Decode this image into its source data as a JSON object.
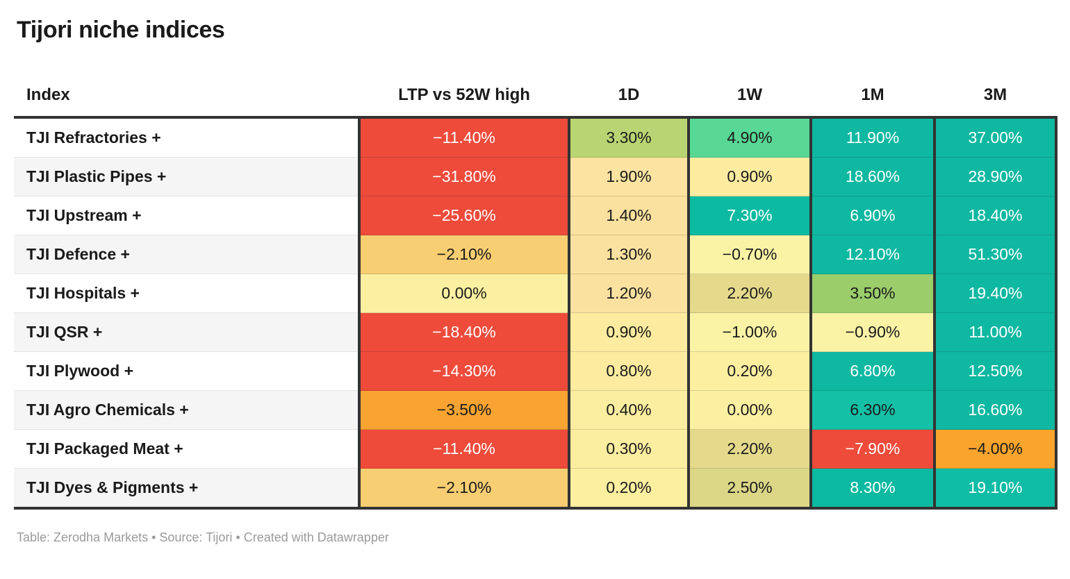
{
  "title": "Tijori niche indices",
  "footer": "Table: Zerodha Markets • Source: Tijori • Created with Datawrapper",
  "colors": {
    "red": "#EE4B3B",
    "orange": "#F9A432",
    "amber": "#F8CE72",
    "teal": "#0FB8A1",
    "border_dark": "#333333",
    "row_alt": "#f5f5f5",
    "footer_text": "#9a9a9a"
  },
  "table": {
    "columns": [
      "Index",
      "LTP vs 52W high",
      "1D",
      "1W",
      "1M",
      "3M"
    ],
    "rows": [
      {
        "index": "TJI Refractories +",
        "cells": [
          {
            "value": "−11.40%",
            "bg": "#EE4B3B",
            "fg": "#ffffff"
          },
          {
            "value": "3.30%",
            "bg": "#B9D573",
            "fg": "#1a1a1a"
          },
          {
            "value": "4.90%",
            "bg": "#58D795",
            "fg": "#1a1a1a"
          },
          {
            "value": "11.90%",
            "bg": "#0FB8A1",
            "fg": "#ffffff"
          },
          {
            "value": "37.00%",
            "bg": "#0FB8A1",
            "fg": "#ffffff"
          }
        ]
      },
      {
        "index": "TJI Plastic Pipes +",
        "cells": [
          {
            "value": "−31.80%",
            "bg": "#EE4B3B",
            "fg": "#ffffff"
          },
          {
            "value": "1.90%",
            "bg": "#FCE3A1",
            "fg": "#1a1a1a"
          },
          {
            "value": "0.90%",
            "bg": "#FDEC9F",
            "fg": "#1a1a1a"
          },
          {
            "value": "18.60%",
            "bg": "#0FB8A1",
            "fg": "#ffffff"
          },
          {
            "value": "28.90%",
            "bg": "#0FB8A1",
            "fg": "#ffffff"
          }
        ]
      },
      {
        "index": "TJI Upstream +",
        "cells": [
          {
            "value": "−25.60%",
            "bg": "#EE4B3B",
            "fg": "#ffffff"
          },
          {
            "value": "1.40%",
            "bg": "#FBE19F",
            "fg": "#1a1a1a"
          },
          {
            "value": "7.30%",
            "bg": "#0CBAA2",
            "fg": "#ffffff"
          },
          {
            "value": "6.90%",
            "bg": "#0FB8A1",
            "fg": "#ffffff"
          },
          {
            "value": "18.40%",
            "bg": "#0FB8A1",
            "fg": "#ffffff"
          }
        ]
      },
      {
        "index": "TJI Defence +",
        "cells": [
          {
            "value": "−2.10%",
            "bg": "#F8CE72",
            "fg": "#1a1a1a"
          },
          {
            "value": "1.30%",
            "bg": "#FBE19F",
            "fg": "#1a1a1a"
          },
          {
            "value": "−0.70%",
            "bg": "#FAF3A6",
            "fg": "#1a1a1a"
          },
          {
            "value": "12.10%",
            "bg": "#0FB8A1",
            "fg": "#ffffff"
          },
          {
            "value": "51.30%",
            "bg": "#0FB8A1",
            "fg": "#ffffff"
          }
        ]
      },
      {
        "index": "TJI Hospitals +",
        "cells": [
          {
            "value": "0.00%",
            "bg": "#FBF0A1",
            "fg": "#1a1a1a"
          },
          {
            "value": "1.20%",
            "bg": "#FBE19F",
            "fg": "#1a1a1a"
          },
          {
            "value": "2.20%",
            "bg": "#E5DA8C",
            "fg": "#1a1a1a"
          },
          {
            "value": "3.50%",
            "bg": "#9BCD6B",
            "fg": "#1a1a1a"
          },
          {
            "value": "19.40%",
            "bg": "#0FB8A1",
            "fg": "#ffffff"
          }
        ]
      },
      {
        "index": "TJI QSR +",
        "cells": [
          {
            "value": "−18.40%",
            "bg": "#EE4B3B",
            "fg": "#ffffff"
          },
          {
            "value": "0.90%",
            "bg": "#FDEC9F",
            "fg": "#1a1a1a"
          },
          {
            "value": "−1.00%",
            "bg": "#FAF3A6",
            "fg": "#1a1a1a"
          },
          {
            "value": "−0.90%",
            "bg": "#FAF3A6",
            "fg": "#1a1a1a"
          },
          {
            "value": "11.00%",
            "bg": "#0FB8A1",
            "fg": "#ffffff"
          }
        ]
      },
      {
        "index": "TJI Plywood +",
        "cells": [
          {
            "value": "−14.30%",
            "bg": "#EE4B3B",
            "fg": "#ffffff"
          },
          {
            "value": "0.80%",
            "bg": "#FDEC9F",
            "fg": "#1a1a1a"
          },
          {
            "value": "0.20%",
            "bg": "#FCEFA0",
            "fg": "#1a1a1a"
          },
          {
            "value": "6.80%",
            "bg": "#0FB8A1",
            "fg": "#ffffff"
          },
          {
            "value": "12.50%",
            "bg": "#0FB8A1",
            "fg": "#ffffff"
          }
        ]
      },
      {
        "index": "TJI Agro Chemicals +",
        "cells": [
          {
            "value": "−3.50%",
            "bg": "#F9A432",
            "fg": "#1a1a1a"
          },
          {
            "value": "0.40%",
            "bg": "#FCEEA0",
            "fg": "#1a1a1a"
          },
          {
            "value": "0.00%",
            "bg": "#FBF0A1",
            "fg": "#1a1a1a"
          },
          {
            "value": "6.30%",
            "bg": "#14C0A6",
            "fg": "#1a1a1a"
          },
          {
            "value": "16.60%",
            "bg": "#0FB8A1",
            "fg": "#ffffff"
          }
        ]
      },
      {
        "index": "TJI Packaged Meat +",
        "cells": [
          {
            "value": "−11.40%",
            "bg": "#EE4B3B",
            "fg": "#ffffff"
          },
          {
            "value": "0.30%",
            "bg": "#FCEEA0",
            "fg": "#1a1a1a"
          },
          {
            "value": "2.20%",
            "bg": "#E5DA8C",
            "fg": "#1a1a1a"
          },
          {
            "value": "−7.90%",
            "bg": "#EE4B3B",
            "fg": "#ffffff"
          },
          {
            "value": "−4.00%",
            "bg": "#F9A42C",
            "fg": "#1a1a1a"
          }
        ]
      },
      {
        "index": "TJI Dyes & Pigments +",
        "cells": [
          {
            "value": "−2.10%",
            "bg": "#F8CE72",
            "fg": "#1a1a1a"
          },
          {
            "value": "0.20%",
            "bg": "#FCEFA0",
            "fg": "#1a1a1a"
          },
          {
            "value": "2.50%",
            "bg": "#DCD687",
            "fg": "#1a1a1a"
          },
          {
            "value": "8.30%",
            "bg": "#0CB9A1",
            "fg": "#ffffff"
          },
          {
            "value": "19.10%",
            "bg": "#0FBCA5",
            "fg": "#ffffff"
          }
        ]
      }
    ]
  },
  "chart_data": {
    "type": "table",
    "title": "Tijori niche indices",
    "columns": [
      "Index",
      "LTP vs 52W high",
      "1D",
      "1W",
      "1M",
      "3M"
    ],
    "rows": [
      [
        "TJI Refractories +",
        -11.4,
        3.3,
        4.9,
        11.9,
        37.0
      ],
      [
        "TJI Plastic Pipes +",
        -31.8,
        1.9,
        0.9,
        18.6,
        28.9
      ],
      [
        "TJI Upstream +",
        -25.6,
        1.4,
        7.3,
        6.9,
        18.4
      ],
      [
        "TJI Defence +",
        -2.1,
        1.3,
        -0.7,
        12.1,
        51.3
      ],
      [
        "TJI Hospitals +",
        0.0,
        1.2,
        2.2,
        3.5,
        19.4
      ],
      [
        "TJI QSR +",
        -18.4,
        0.9,
        -1.0,
        -0.9,
        11.0
      ],
      [
        "TJI Plywood +",
        -14.3,
        0.8,
        0.2,
        6.8,
        12.5
      ],
      [
        "TJI Agro Chemicals +",
        -3.5,
        0.4,
        0.0,
        6.3,
        16.6
      ],
      [
        "TJI Packaged Meat +",
        -11.4,
        0.3,
        2.2,
        -7.9,
        -4.0
      ],
      [
        "TJI Dyes & Pigments +",
        -2.1,
        0.2,
        2.5,
        8.3,
        19.1
      ]
    ],
    "units": "percent",
    "notes": "Cell backgrounds form a red-yellow-green heatmap; negative values red/orange, small values yellow, large positives teal"
  }
}
